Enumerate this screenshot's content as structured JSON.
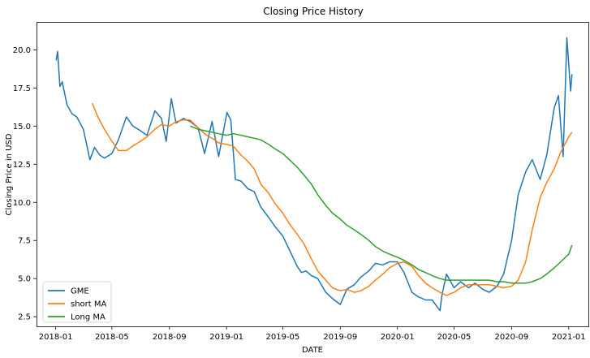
{
  "chart_data": {
    "type": "line",
    "title": "Closing Price History",
    "xlabel": "DATE",
    "ylabel": "Closing Price in USD",
    "xlim": [
      "2017-11-21",
      "2021-02-12"
    ],
    "ylim": [
      1.87,
      21.83
    ],
    "x_ticks": [
      "2018-01-01",
      "2018-05-01",
      "2018-09-01",
      "2019-01-01",
      "2019-05-01",
      "2019-09-01",
      "2020-01-01",
      "2020-05-01",
      "2020-09-01",
      "2021-01-01"
    ],
    "x_tick_labels": [
      "2018-01",
      "2018-05",
      "2018-09",
      "2019-01",
      "2019-05",
      "2019-09",
      "2020-01",
      "2020-05",
      "2020-09",
      "2021-01"
    ],
    "y_ticks": [
      2.5,
      5.0,
      7.5,
      10.0,
      12.5,
      15.0,
      17.5,
      20.0
    ],
    "y_tick_labels": [
      "2.5",
      "5.0",
      "7.5",
      "10.0",
      "12.5",
      "15.0",
      "17.5",
      "20.0"
    ],
    "grid": false,
    "legend_position": "bottom-left",
    "series": [
      {
        "name": "GME",
        "color": "#1f77b4",
        "x": [
          "2018-01-02",
          "2018-01-05",
          "2018-01-10",
          "2018-01-15",
          "2018-01-25",
          "2018-02-05",
          "2018-02-15",
          "2018-03-01",
          "2018-03-15",
          "2018-03-25",
          "2018-04-05",
          "2018-04-15",
          "2018-05-01",
          "2018-05-15",
          "2018-06-01",
          "2018-06-15",
          "2018-07-01",
          "2018-07-15",
          "2018-08-01",
          "2018-08-15",
          "2018-08-25",
          "2018-09-05",
          "2018-09-15",
          "2018-10-01",
          "2018-10-15",
          "2018-11-01",
          "2018-11-15",
          "2018-12-01",
          "2018-12-15",
          "2019-01-02",
          "2019-01-10",
          "2019-01-20",
          "2019-02-01",
          "2019-02-15",
          "2019-03-01",
          "2019-03-15",
          "2019-04-01",
          "2019-04-15",
          "2019-05-01",
          "2019-05-15",
          "2019-06-01",
          "2019-06-10",
          "2019-06-20",
          "2019-07-01",
          "2019-07-15",
          "2019-08-01",
          "2019-08-15",
          "2019-09-01",
          "2019-09-15",
          "2019-10-01",
          "2019-10-15",
          "2019-11-01",
          "2019-11-15",
          "2019-12-01",
          "2019-12-15",
          "2020-01-01",
          "2020-01-15",
          "2020-02-01",
          "2020-02-15",
          "2020-03-01",
          "2020-03-15",
          "2020-04-01",
          "2020-04-05",
          "2020-04-15",
          "2020-05-01",
          "2020-05-15",
          "2020-06-01",
          "2020-06-15",
          "2020-07-01",
          "2020-07-15",
          "2020-08-01",
          "2020-08-15",
          "2020-09-01",
          "2020-09-15",
          "2020-10-01",
          "2020-10-15",
          "2020-11-01",
          "2020-11-15",
          "2020-12-01",
          "2020-12-10",
          "2020-12-20",
          "2020-12-28",
          "2021-01-05",
          "2021-01-08"
        ],
        "y": [
          19.3,
          19.9,
          17.6,
          17.9,
          16.4,
          15.8,
          15.6,
          14.8,
          12.8,
          13.6,
          13.1,
          12.9,
          13.2,
          14.1,
          15.6,
          15.0,
          14.7,
          14.4,
          16.0,
          15.5,
          14.0,
          16.8,
          15.2,
          15.5,
          15.3,
          14.9,
          13.2,
          15.3,
          13.0,
          15.9,
          15.4,
          11.5,
          11.4,
          10.9,
          10.7,
          9.7,
          9.0,
          8.4,
          7.8,
          6.9,
          5.8,
          5.4,
          5.5,
          5.2,
          5.0,
          4.1,
          3.7,
          3.3,
          4.3,
          4.6,
          5.1,
          5.5,
          6.0,
          5.9,
          6.1,
          6.1,
          5.4,
          4.1,
          3.8,
          3.6,
          3.6,
          2.9,
          3.9,
          5.3,
          4.4,
          4.8,
          4.4,
          4.7,
          4.3,
          4.1,
          4.5,
          5.3,
          7.5,
          10.5,
          12.0,
          12.8,
          11.5,
          13.1,
          16.2,
          17.0,
          13.0,
          20.8,
          17.3,
          18.4
        ]
      },
      {
        "name": "short MA",
        "color": "#ff7f0e",
        "x": [
          "2018-03-20",
          "2018-04-01",
          "2018-04-15",
          "2018-05-01",
          "2018-05-15",
          "2018-06-01",
          "2018-06-15",
          "2018-07-01",
          "2018-07-15",
          "2018-08-01",
          "2018-08-15",
          "2018-09-01",
          "2018-09-15",
          "2018-10-01",
          "2018-10-15",
          "2018-11-01",
          "2018-11-15",
          "2018-12-01",
          "2018-12-15",
          "2019-01-01",
          "2019-01-15",
          "2019-02-01",
          "2019-02-15",
          "2019-03-01",
          "2019-03-15",
          "2019-04-01",
          "2019-04-15",
          "2019-05-01",
          "2019-05-15",
          "2019-06-01",
          "2019-06-15",
          "2019-07-01",
          "2019-07-15",
          "2019-08-01",
          "2019-08-15",
          "2019-09-01",
          "2019-09-15",
          "2019-10-01",
          "2019-10-15",
          "2019-11-01",
          "2019-11-15",
          "2019-12-01",
          "2019-12-15",
          "2020-01-01",
          "2020-01-15",
          "2020-02-01",
          "2020-02-15",
          "2020-03-01",
          "2020-03-15",
          "2020-04-01",
          "2020-04-15",
          "2020-05-01",
          "2020-05-15",
          "2020-06-01",
          "2020-06-15",
          "2020-07-01",
          "2020-07-15",
          "2020-08-01",
          "2020-08-15",
          "2020-09-01",
          "2020-09-15",
          "2020-10-01",
          "2020-10-15",
          "2020-11-01",
          "2020-11-15",
          "2020-12-01",
          "2020-12-15",
          "2021-01-01",
          "2021-01-08"
        ],
        "y": [
          16.5,
          15.6,
          14.8,
          14.0,
          13.4,
          13.4,
          13.7,
          14.0,
          14.3,
          14.8,
          15.1,
          15.0,
          15.3,
          15.4,
          15.4,
          14.9,
          14.5,
          14.2,
          13.9,
          13.8,
          13.7,
          13.1,
          12.7,
          12.2,
          11.2,
          10.6,
          9.9,
          9.3,
          8.6,
          7.9,
          7.3,
          6.3,
          5.5,
          4.9,
          4.4,
          4.2,
          4.3,
          4.1,
          4.2,
          4.5,
          4.9,
          5.3,
          5.7,
          6.0,
          6.1,
          5.8,
          5.2,
          4.7,
          4.4,
          4.1,
          3.9,
          4.1,
          4.4,
          4.6,
          4.6,
          4.6,
          4.6,
          4.5,
          4.4,
          4.5,
          4.9,
          6.1,
          8.2,
          10.3,
          11.3,
          12.2,
          13.3,
          14.3,
          14.6
        ]
      },
      {
        "name": "Long MA",
        "color": "#2ca02c",
        "x": [
          "2018-10-15",
          "2018-11-01",
          "2018-11-15",
          "2018-12-01",
          "2018-12-15",
          "2019-01-01",
          "2019-01-15",
          "2019-02-01",
          "2019-02-15",
          "2019-03-01",
          "2019-03-15",
          "2019-04-01",
          "2019-04-15",
          "2019-05-01",
          "2019-05-15",
          "2019-06-01",
          "2019-06-15",
          "2019-07-01",
          "2019-07-15",
          "2019-08-01",
          "2019-08-15",
          "2019-09-01",
          "2019-09-15",
          "2019-10-01",
          "2019-10-15",
          "2019-11-01",
          "2019-11-15",
          "2019-12-01",
          "2019-12-15",
          "2020-01-01",
          "2020-01-15",
          "2020-02-01",
          "2020-02-15",
          "2020-03-01",
          "2020-03-15",
          "2020-04-01",
          "2020-04-15",
          "2020-05-01",
          "2020-05-15",
          "2020-06-01",
          "2020-06-15",
          "2020-07-01",
          "2020-07-15",
          "2020-08-01",
          "2020-08-15",
          "2020-09-01",
          "2020-09-15",
          "2020-10-01",
          "2020-10-15",
          "2020-11-01",
          "2020-11-15",
          "2020-12-01",
          "2020-12-15",
          "2021-01-01",
          "2021-01-08"
        ],
        "y": [
          15.0,
          14.8,
          14.7,
          14.6,
          14.5,
          14.4,
          14.5,
          14.4,
          14.3,
          14.2,
          14.1,
          13.8,
          13.5,
          13.2,
          12.8,
          12.3,
          11.8,
          11.2,
          10.5,
          9.8,
          9.3,
          8.9,
          8.5,
          8.2,
          7.9,
          7.5,
          7.1,
          6.8,
          6.6,
          6.4,
          6.2,
          5.9,
          5.6,
          5.4,
          5.2,
          5.0,
          4.9,
          4.9,
          4.9,
          4.9,
          4.9,
          4.9,
          4.9,
          4.8,
          4.8,
          4.7,
          4.7,
          4.7,
          4.8,
          5.0,
          5.3,
          5.7,
          6.1,
          6.6,
          7.2
        ]
      }
    ]
  }
}
